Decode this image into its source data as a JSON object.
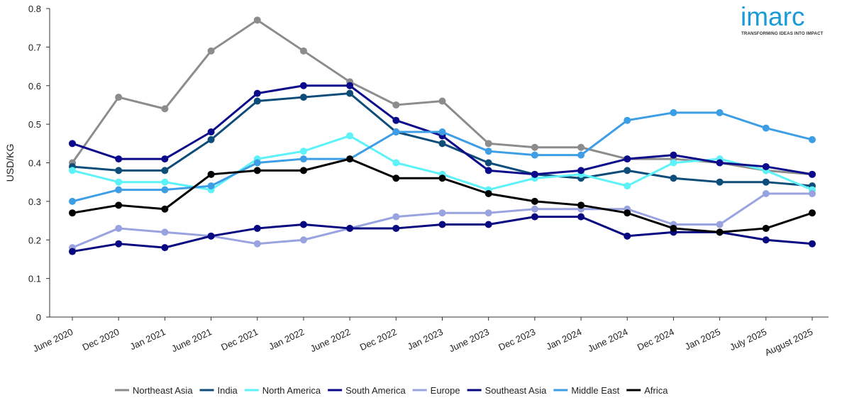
{
  "brand": {
    "logo_text": "imarc",
    "tagline": "TRANSFORMING IDEAS INTO IMPACT",
    "color": "#1a9ad6"
  },
  "chart_data": {
    "type": "line",
    "title": "",
    "xlabel": "",
    "ylabel": "USD/KG",
    "ylim": [
      0,
      0.8
    ],
    "yticks": [
      0,
      0.1,
      0.2,
      0.3,
      0.4,
      0.5,
      0.6,
      0.7,
      0.8
    ],
    "ytick_labels": [
      "0",
      "0.1",
      "0.2",
      "0.3",
      "0.4",
      "0.5",
      "0.6",
      "0.7",
      "0.8"
    ],
    "grid": false,
    "legend_position": "bottom",
    "categories": [
      "June 2020",
      "Dec 2020",
      "Jan 2021",
      "June 2021",
      "Dec 2021",
      "Jan 2022",
      "June 2022",
      "Dec 2022",
      "Jan 2023",
      "June 2023",
      "Dec 2023",
      "Jan 2024",
      "June 2024",
      "Dec 2024",
      "Jan 2025",
      "July 2025",
      "August 2025"
    ],
    "series": [
      {
        "name": "Northeast Asia",
        "color": "#8c8c8c",
        "values": [
          0.4,
          0.57,
          0.54,
          0.69,
          0.77,
          0.69,
          0.61,
          0.55,
          0.56,
          0.45,
          0.44,
          0.44,
          0.41,
          0.41,
          0.4,
          0.38,
          0.37
        ]
      },
      {
        "name": "India",
        "color": "#0e4d7a",
        "values": [
          0.39,
          0.38,
          0.38,
          0.46,
          0.56,
          0.57,
          0.58,
          0.48,
          0.45,
          0.4,
          0.37,
          0.36,
          0.38,
          0.36,
          0.35,
          0.35,
          0.34
        ]
      },
      {
        "name": "North America",
        "color": "#5cf2f7",
        "values": [
          0.38,
          0.35,
          0.35,
          0.33,
          0.41,
          0.43,
          0.47,
          0.4,
          0.37,
          0.33,
          0.36,
          0.37,
          0.34,
          0.4,
          0.41,
          0.38,
          0.33
        ]
      },
      {
        "name": "South America",
        "color": "#0a0a8a",
        "values": [
          0.45,
          0.41,
          0.41,
          0.48,
          0.58,
          0.6,
          0.6,
          0.51,
          0.47,
          0.38,
          0.37,
          0.38,
          0.41,
          0.42,
          0.4,
          0.39,
          0.37
        ]
      },
      {
        "name": "Europe",
        "color": "#99a3e0",
        "values": [
          0.18,
          0.23,
          0.22,
          0.21,
          0.19,
          0.2,
          0.23,
          0.26,
          0.27,
          0.27,
          0.28,
          0.28,
          0.28,
          0.24,
          0.24,
          0.32,
          0.32
        ]
      },
      {
        "name": "Southeast Asia",
        "color": "#070780",
        "values": [
          0.17,
          0.19,
          0.18,
          0.21,
          0.23,
          0.24,
          0.23,
          0.23,
          0.24,
          0.24,
          0.26,
          0.26,
          0.21,
          0.22,
          0.22,
          0.2,
          0.19
        ]
      },
      {
        "name": "Middle East",
        "color": "#3d9ee6",
        "values": [
          0.3,
          0.33,
          0.33,
          0.34,
          0.4,
          0.41,
          0.41,
          0.48,
          0.48,
          0.43,
          0.42,
          0.42,
          0.51,
          0.53,
          0.53,
          0.49,
          0.46
        ]
      },
      {
        "name": "Africa",
        "color": "#000000",
        "values": [
          0.27,
          0.29,
          0.28,
          0.37,
          0.38,
          0.38,
          0.41,
          0.36,
          0.36,
          0.32,
          0.3,
          0.29,
          0.27,
          0.23,
          0.22,
          0.23,
          0.27
        ]
      }
    ]
  }
}
